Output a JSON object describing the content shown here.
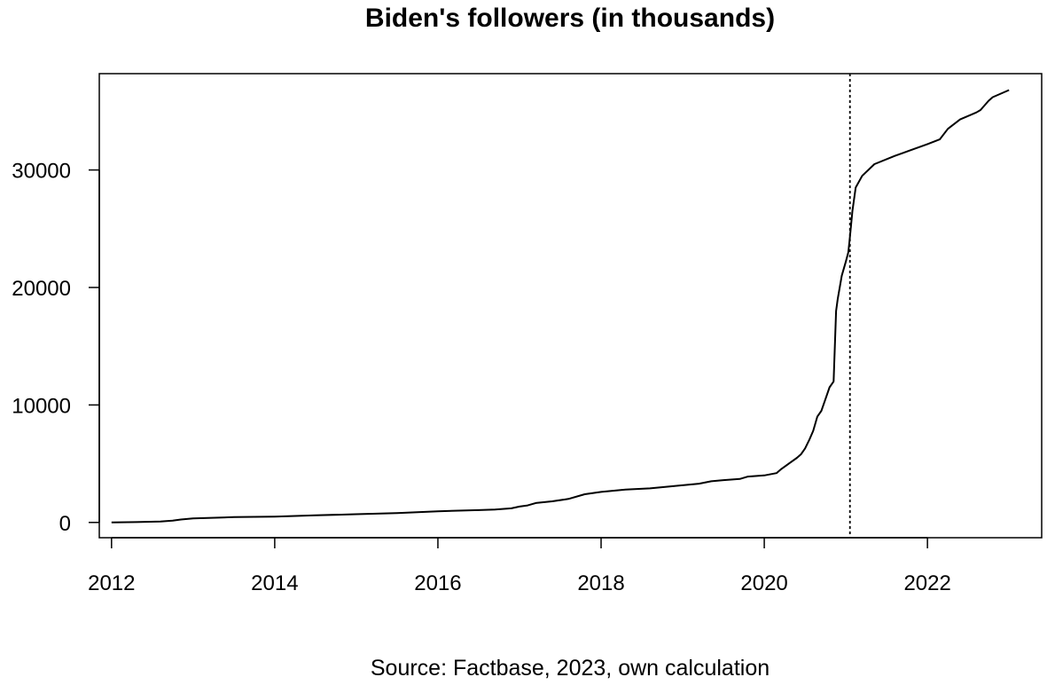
{
  "chart_data": {
    "type": "line",
    "title": "Biden's followers (in thousands)",
    "caption": "Source: Factbase, 2023, own calculation",
    "xlabel": "",
    "ylabel": "",
    "xlim": [
      2011.85,
      2023.4
    ],
    "ylim": [
      -1300,
      38200
    ],
    "x_ticks": [
      2012,
      2014,
      2016,
      2018,
      2020,
      2022
    ],
    "y_ticks": [
      0,
      10000,
      20000,
      30000
    ],
    "grid": false,
    "legend": "none",
    "line_color": "#000000",
    "vline": {
      "x": 2021.05,
      "style": "dotted"
    },
    "series": [
      {
        "x": [
          2012.0,
          2012.3,
          2012.6,
          2012.75,
          2012.85,
          2013.0,
          2013.5,
          2014.0,
          2014.5,
          2015.0,
          2015.5,
          2016.0,
          2016.5,
          2016.7,
          2016.9,
          2017.0,
          2017.1,
          2017.2,
          2017.4,
          2017.6,
          2017.8,
          2018.0,
          2018.3,
          2018.6,
          2018.9,
          2019.2,
          2019.35,
          2019.5,
          2019.7,
          2019.8,
          2020.0,
          2020.15,
          2020.2,
          2020.3,
          2020.4,
          2020.45,
          2020.5,
          2020.55,
          2020.6,
          2020.65,
          2020.7,
          2020.75,
          2020.8,
          2020.85,
          2020.88,
          2020.9,
          2020.95,
          2021.0,
          2021.03,
          2021.05,
          2021.08,
          2021.12,
          2021.2,
          2021.35,
          2021.6,
          2021.8,
          2022.0,
          2022.15,
          2022.25,
          2022.4,
          2022.6,
          2022.65,
          2022.75,
          2022.8,
          2022.9,
          2023.0
        ],
        "y": [
          0,
          30,
          80,
          150,
          250,
          350,
          450,
          500,
          600,
          700,
          800,
          950,
          1050,
          1100,
          1200,
          1350,
          1450,
          1650,
          1800,
          2000,
          2400,
          2600,
          2800,
          2900,
          3100,
          3300,
          3500,
          3600,
          3700,
          3900,
          4000,
          4200,
          4500,
          5000,
          5500,
          5800,
          6300,
          7000,
          7800,
          9000,
          9500,
          10500,
          11500,
          12000,
          18000,
          19000,
          21000,
          22200,
          23000,
          24300,
          26500,
          28500,
          29500,
          30500,
          31200,
          31700,
          32200,
          32600,
          33500,
          34300,
          34900,
          35100,
          35900,
          36200,
          36500,
          36800
        ]
      }
    ]
  }
}
